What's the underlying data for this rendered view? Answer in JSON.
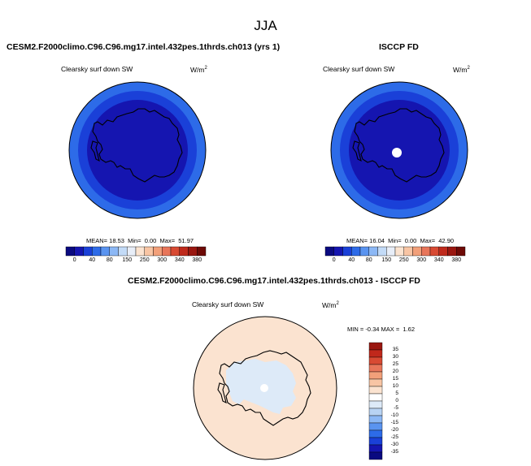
{
  "figure": {
    "season": "JJA"
  },
  "panels": {
    "model": {
      "title": "CESM2.F2000climo.C96.C96.mg17.intel.432pes.1thrds.ch013 (yrs 1)",
      "variable": "Clearsky surf down SW",
      "units": "W/m",
      "units_exp": "2",
      "stats": {
        "mean_label": "MEAN=",
        "mean": "18.53",
        "min_label": "Min=",
        "min": "0.00",
        "max_label": "Max=",
        "max": "51.97"
      }
    },
    "obs": {
      "title": "ISCCP FD",
      "variable": "Clearsky surf down SW",
      "units": "W/m",
      "units_exp": "2",
      "stats": {
        "mean_label": "MEAN=",
        "mean": "16.04",
        "min_label": "Min=",
        "min": "0.00",
        "max_label": "Max=",
        "max": "42.90"
      }
    },
    "diff": {
      "title": "CESM2.F2000climo.C96.C96.mg17.intel.432pes.1thrds.ch013 - ISCCP FD",
      "variable": "Clearsky surf down SW",
      "units": "W/m",
      "units_exp": "2",
      "stats": {
        "min_label": "MIN =",
        "min": "-0.34",
        "max_label": "MAX =",
        "max": "1.62"
      }
    }
  },
  "colorbars": {
    "abs_ticks": [
      "0",
      "40",
      "80",
      "150",
      "250",
      "300",
      "340",
      "380"
    ],
    "abs_colors": [
      "#0a0a80",
      "#1515b0",
      "#1a40d8",
      "#2d6be8",
      "#5a94f0",
      "#8cb8f5",
      "#c3dbf7",
      "#e8eef8",
      "#fbe3d0",
      "#f8c5a4",
      "#f2a07a",
      "#e8765a",
      "#d84a33",
      "#bf2a1c",
      "#9a1710",
      "#6e0a06"
    ],
    "diff_ticks": [
      "35",
      "30",
      "25",
      "20",
      "15",
      "10",
      "5",
      "0",
      "-5",
      "-10",
      "-15",
      "-20",
      "-25",
      "-30",
      "-35"
    ],
    "diff_colors": [
      "#9a1710",
      "#c0281b",
      "#d84a33",
      "#e8765a",
      "#f2a07a",
      "#f8c5a4",
      "#fbe3d0",
      "#ffffff",
      "#ddeaf8",
      "#b8d3f3",
      "#8cb8f5",
      "#5a94f0",
      "#2d6be8",
      "#1a40d8",
      "#1515b0",
      "#0a0a80"
    ]
  },
  "map_colors": {
    "outer_ring": "#2d6be8",
    "mid_ring": "#1a40d8",
    "inner": "#1515b0",
    "diff_ocean": "#fbe3d0",
    "diff_ice": "#ddeaf8",
    "pole_missing": "#ffffff"
  }
}
